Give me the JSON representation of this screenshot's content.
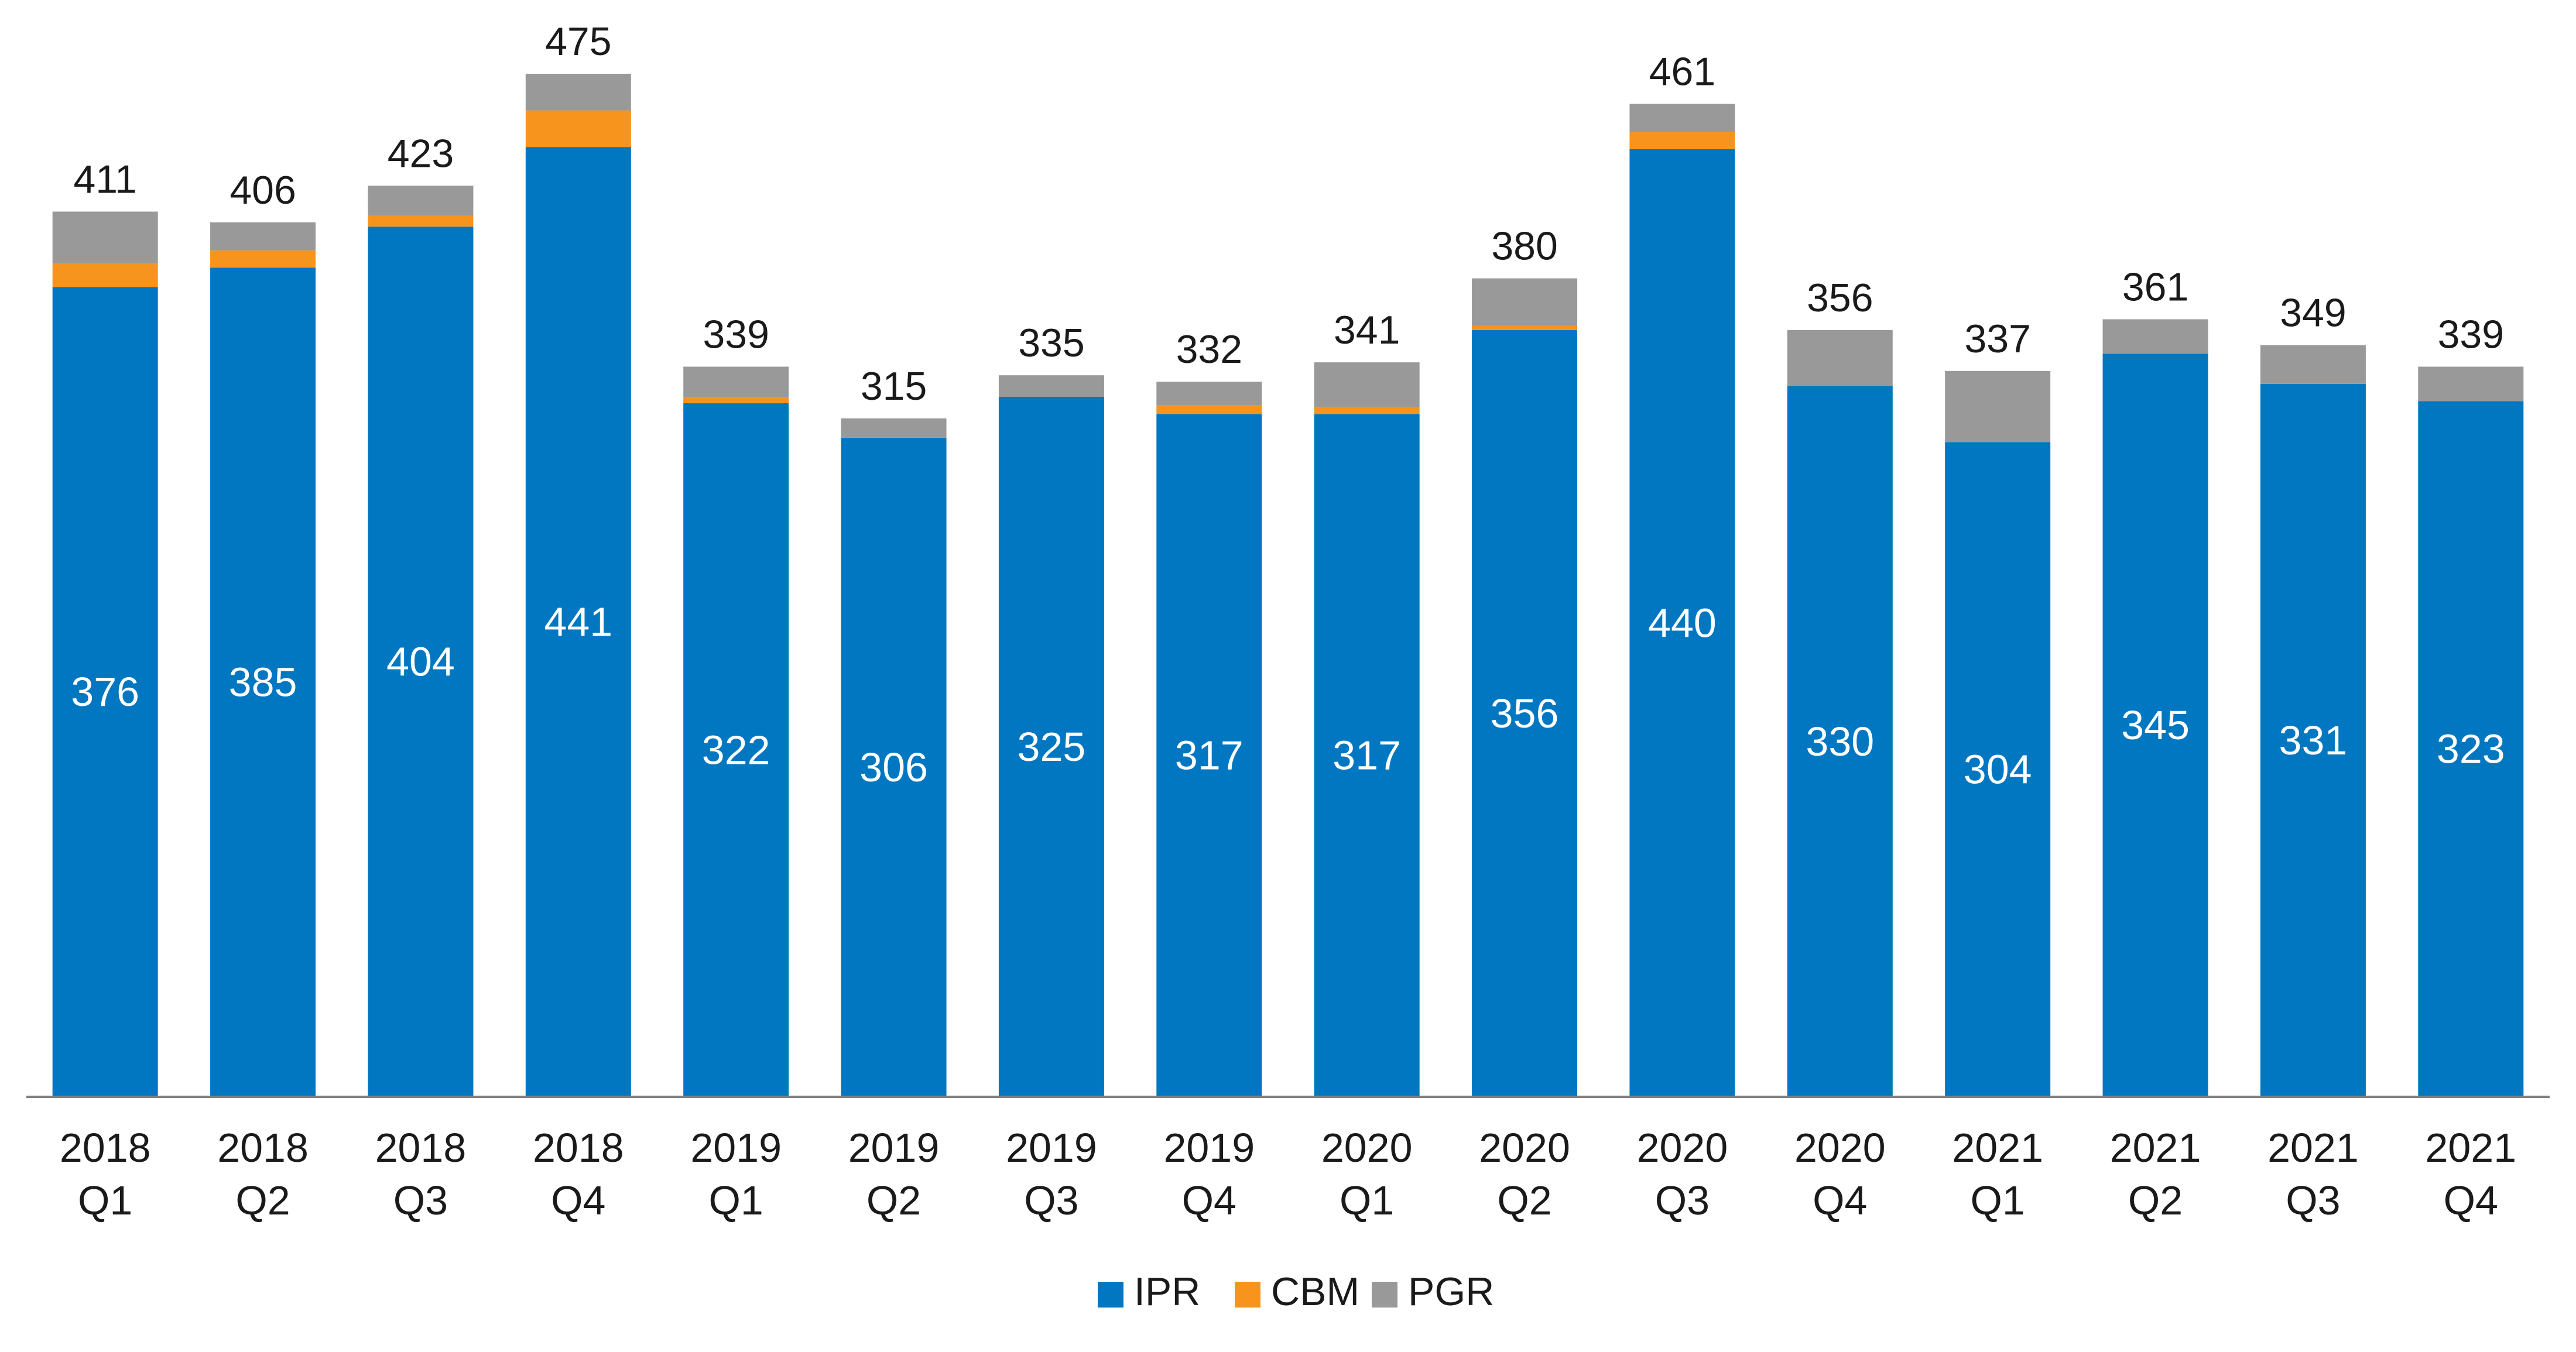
{
  "chart_data": {
    "type": "bar",
    "stacked": true,
    "title": "",
    "xlabel": "",
    "ylabel": "",
    "ylim": [
      0,
      475
    ],
    "grid": false,
    "legend_position": "bottom",
    "categories": [
      [
        "2018",
        "Q1"
      ],
      [
        "2018",
        "Q2"
      ],
      [
        "2018",
        "Q3"
      ],
      [
        "2018",
        "Q4"
      ],
      [
        "2019",
        "Q1"
      ],
      [
        "2019",
        "Q2"
      ],
      [
        "2019",
        "Q3"
      ],
      [
        "2019",
        "Q4"
      ],
      [
        "2020",
        "Q1"
      ],
      [
        "2020",
        "Q2"
      ],
      [
        "2020",
        "Q3"
      ],
      [
        "2020",
        "Q4"
      ],
      [
        "2021",
        "Q1"
      ],
      [
        "2021",
        "Q2"
      ],
      [
        "2021",
        "Q3"
      ],
      [
        "2021",
        "Q4"
      ]
    ],
    "series": [
      {
        "name": "IPR",
        "color": "#0077c0",
        "values": [
          376,
          385,
          404,
          441,
          322,
          306,
          325,
          317,
          317,
          356,
          440,
          330,
          304,
          345,
          331,
          323
        ]
      },
      {
        "name": "CBM",
        "color": "#f7941d",
        "values": [
          11,
          8,
          5,
          17,
          3,
          0,
          0,
          4,
          3,
          2,
          8,
          0,
          0,
          0,
          0,
          0
        ]
      },
      {
        "name": "PGR",
        "color": "#999999",
        "values": [
          24,
          13,
          14,
          17,
          14,
          9,
          10,
          11,
          21,
          22,
          13,
          26,
          33,
          16,
          18,
          16
        ]
      }
    ],
    "totals": [
      411,
      406,
      423,
      475,
      339,
      315,
      335,
      332,
      341,
      380,
      461,
      356,
      337,
      361,
      349,
      339
    ]
  }
}
